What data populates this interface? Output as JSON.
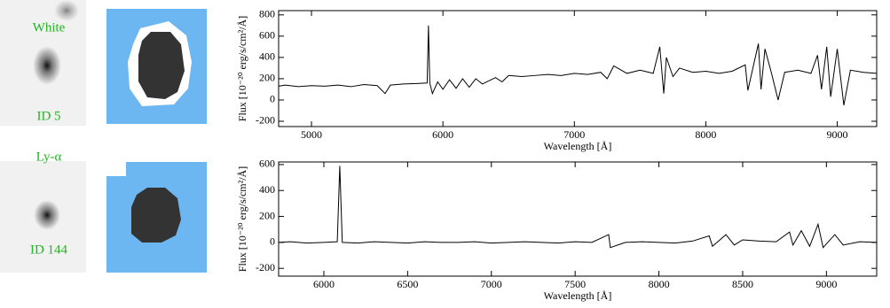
{
  "panels": [
    {
      "band": "White",
      "id": "ID 5"
    },
    {
      "band": "Ly-α",
      "id": "ID 144"
    }
  ],
  "chart_data": [
    {
      "type": "line",
      "xlabel": "Wavelength [Å]",
      "ylabel": "Flux [10⁻²⁰ erg/s/cm²/Å]",
      "color": "#000000",
      "xlim": [
        4750,
        9300
      ],
      "xticks": [
        5000,
        6000,
        7000,
        8000,
        9000
      ],
      "ylim": [
        -250,
        840
      ],
      "yticks": [
        -200,
        0,
        200,
        400,
        600,
        800
      ],
      "x": [
        4750,
        4800,
        4900,
        5000,
        5100,
        5200,
        5300,
        5400,
        5500,
        5560,
        5600,
        5700,
        5800,
        5880,
        5890,
        5900,
        5920,
        5960,
        6000,
        6050,
        6100,
        6150,
        6200,
        6250,
        6300,
        6400,
        6450,
        6500,
        6600,
        6700,
        6800,
        6900,
        7000,
        7100,
        7200,
        7250,
        7300,
        7400,
        7500,
        7600,
        7650,
        7680,
        7700,
        7750,
        7800,
        7900,
        8000,
        8100,
        8200,
        8300,
        8320,
        8400,
        8420,
        8450,
        8500,
        8550,
        8600,
        8700,
        8800,
        8850,
        8880,
        8920,
        8950,
        9000,
        9050,
        9100,
        9200,
        9300
      ],
      "values": [
        130,
        140,
        125,
        135,
        130,
        140,
        125,
        145,
        135,
        60,
        140,
        150,
        155,
        160,
        700,
        160,
        60,
        170,
        100,
        190,
        110,
        200,
        120,
        200,
        150,
        210,
        170,
        230,
        220,
        230,
        240,
        230,
        250,
        240,
        260,
        200,
        320,
        250,
        280,
        250,
        500,
        60,
        400,
        220,
        300,
        260,
        270,
        250,
        270,
        330,
        90,
        530,
        100,
        480,
        250,
        0,
        260,
        280,
        250,
        420,
        100,
        500,
        30,
        480,
        -50,
        280,
        260,
        250
      ]
    },
    {
      "type": "line",
      "xlabel": "Wavelength [Å]",
      "ylabel": "Flux [10⁻²⁰ erg/s/cm²/Å]",
      "color": "#000000",
      "xlim": [
        5730,
        9300
      ],
      "xticks": [
        6000,
        6500,
        7000,
        7500,
        8000,
        8500,
        9000
      ],
      "ylim": [
        -260,
        620
      ],
      "yticks": [
        -200,
        0,
        200,
        400,
        600
      ],
      "x": [
        5730,
        5800,
        5900,
        6000,
        6080,
        6095,
        6110,
        6200,
        6300,
        6400,
        6500,
        6600,
        6700,
        6800,
        6900,
        7000,
        7100,
        7200,
        7300,
        7400,
        7500,
        7600,
        7700,
        7710,
        7800,
        7900,
        8000,
        8100,
        8200,
        8300,
        8320,
        8400,
        8450,
        8500,
        8600,
        8700,
        8780,
        8800,
        8850,
        8900,
        8950,
        8980,
        9050,
        9100,
        9200,
        9300
      ],
      "values": [
        0,
        5,
        -5,
        0,
        5,
        590,
        0,
        -5,
        5,
        0,
        -5,
        5,
        0,
        0,
        5,
        -5,
        0,
        5,
        0,
        -5,
        5,
        0,
        60,
        -40,
        0,
        5,
        0,
        -5,
        10,
        50,
        -30,
        60,
        -20,
        20,
        10,
        5,
        80,
        -20,
        90,
        -30,
        140,
        -40,
        60,
        -20,
        5,
        0
      ]
    }
  ]
}
